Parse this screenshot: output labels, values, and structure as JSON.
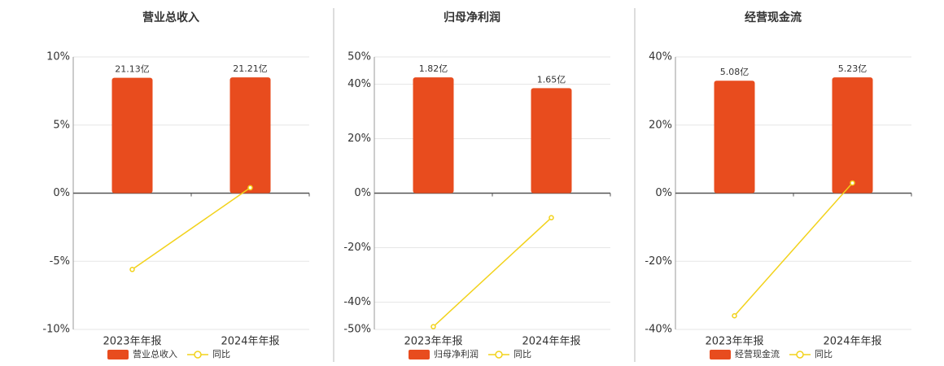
{
  "chart_data": [
    {
      "type": "bar-line",
      "title": "营业总收入",
      "categories": [
        "2023年年报",
        "2024年年报"
      ],
      "series": [
        {
          "name": "营业总收入",
          "color": "#e84c1e",
          "values": [
            21.13,
            21.21
          ],
          "value_labels": [
            "21.13亿",
            "21.21亿"
          ]
        },
        {
          "name": "同比",
          "color": "#f2d21b",
          "values": [
            -5.6,
            0.4
          ]
        }
      ],
      "ylim": [
        -10,
        10
      ],
      "yticks": [
        {
          "value": -10,
          "label": "-10%"
        },
        {
          "value": -5,
          "label": "-5%"
        },
        {
          "value": 0,
          "label": "0%"
        },
        {
          "value": 5,
          "label": "5%"
        },
        {
          "value": 10,
          "label": "10%"
        }
      ],
      "grid": true
    },
    {
      "type": "bar-line",
      "title": "归母净利润",
      "categories": [
        "2023年年报",
        "2024年年报"
      ],
      "series": [
        {
          "name": "归母净利润",
          "color": "#e84c1e",
          "values": [
            1.82,
            1.65
          ],
          "value_labels": [
            "1.82亿",
            "1.65亿"
          ]
        },
        {
          "name": "同比",
          "color": "#f2d21b",
          "values": [
            -49,
            -9
          ]
        }
      ],
      "ylim": [
        -50,
        50
      ],
      "yticks": [
        {
          "value": -50,
          "label": "-50%"
        },
        {
          "value": -40,
          "label": "-40%"
        },
        {
          "value": -20,
          "label": "-20%"
        },
        {
          "value": 0,
          "label": "0%"
        },
        {
          "value": 20,
          "label": "20%"
        },
        {
          "value": 40,
          "label": "40%"
        },
        {
          "value": 50,
          "label": "50%"
        }
      ],
      "grid": true
    },
    {
      "type": "bar-line",
      "title": "经营现金流",
      "categories": [
        "2023年年报",
        "2024年年报"
      ],
      "series": [
        {
          "name": "经营现金流",
          "color": "#e84c1e",
          "values": [
            5.08,
            5.23
          ],
          "value_labels": [
            "5.08亿",
            "5.23亿"
          ]
        },
        {
          "name": "同比",
          "color": "#f2d21b",
          "values": [
            -36,
            3
          ]
        }
      ],
      "ylim": [
        -40,
        40
      ],
      "yticks": [
        {
          "value": -40,
          "label": "-40%"
        },
        {
          "value": -20,
          "label": "-20%"
        },
        {
          "value": 0,
          "label": "0%"
        },
        {
          "value": 20,
          "label": "20%"
        },
        {
          "value": 40,
          "label": "40%"
        }
      ],
      "grid": true
    }
  ]
}
